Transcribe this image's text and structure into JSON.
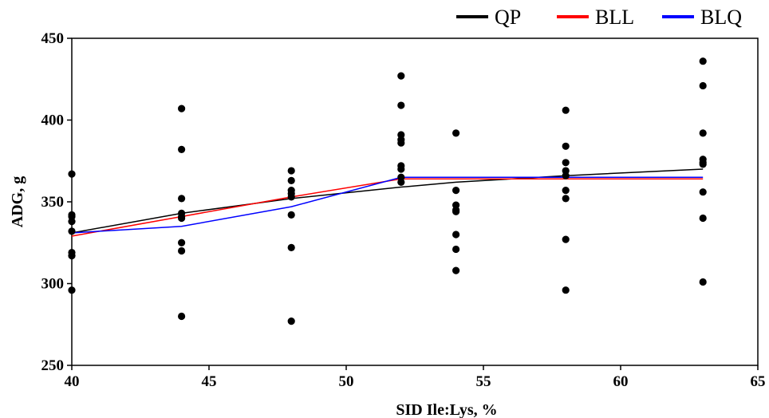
{
  "chart_data": {
    "type": "scatter",
    "title": "",
    "xlabel": "SID Ile:Lys, %",
    "ylabel": "ADG, g",
    "xlim": [
      40,
      65
    ],
    "ylim": [
      250,
      450
    ],
    "xticks": [
      "40",
      "45",
      "50",
      "55",
      "60",
      "65"
    ],
    "yticks": [
      "250",
      "300",
      "350",
      "400",
      "450"
    ],
    "grid": false,
    "legend_position": "top-right",
    "points": {
      "color": "#000000",
      "x": [
        40,
        40,
        40,
        40,
        40,
        40,
        40,
        40,
        44,
        44,
        44,
        44,
        44,
        44,
        44,
        44,
        44,
        48,
        48,
        48,
        48,
        48,
        48,
        48,
        48,
        52,
        52,
        52,
        52,
        52,
        52,
        52,
        52,
        52,
        54,
        54,
        54,
        54,
        54,
        54,
        54,
        54,
        58,
        58,
        58,
        58,
        58,
        58,
        58,
        58,
        58,
        63,
        63,
        63,
        63,
        63,
        63,
        63,
        63,
        63
      ],
      "y": [
        367,
        341,
        338,
        332,
        319,
        317,
        296,
        342,
        407,
        382,
        352,
        343,
        340,
        325,
        320,
        280,
        341,
        369,
        363,
        357,
        355,
        342,
        322,
        277,
        353,
        427,
        409,
        391,
        386,
        372,
        370,
        362,
        388,
        365,
        392,
        357,
        348,
        345,
        330,
        321,
        308,
        344,
        406,
        384,
        374,
        369,
        357,
        352,
        327,
        296,
        366,
        436,
        421,
        392,
        376,
        374,
        356,
        340,
        301,
        373
      ]
    },
    "series": [
      {
        "name": "QP",
        "color": "#000000",
        "x": [
          40,
          44,
          48,
          52,
          54,
          58,
          63
        ],
        "y": [
          331,
          343,
          352,
          359,
          362,
          366,
          370
        ]
      },
      {
        "name": "BLL",
        "color": "#ff0000",
        "x": [
          40,
          44,
          48,
          52,
          54,
          58,
          63
        ],
        "y": [
          329,
          341,
          353,
          364,
          364,
          364,
          364
        ]
      },
      {
        "name": "BLQ",
        "color": "#0000ff",
        "x": [
          40,
          44,
          48,
          52,
          54,
          58,
          63
        ],
        "y": [
          331,
          335,
          347,
          365,
          365,
          365,
          365
        ]
      }
    ]
  }
}
